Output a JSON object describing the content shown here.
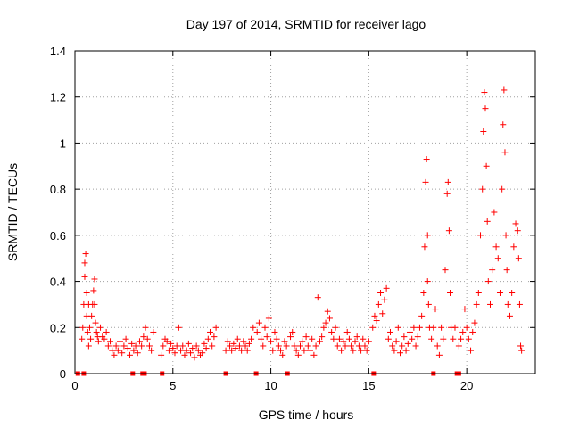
{
  "chart_data": {
    "type": "scatter",
    "title": "Day 197 of 2014, SRMTID for receiver lago",
    "xlabel": "GPS time / hours",
    "ylabel": "SRMTID / TECUs",
    "xlim": [
      0,
      23.5
    ],
    "ylim": [
      0,
      1.4
    ],
    "xticks": [
      0,
      5,
      10,
      15,
      20
    ],
    "yticks": [
      0,
      0.2,
      0.4,
      0.6,
      0.8,
      1,
      1.2,
      1.4
    ],
    "xtick_labels": [
      "0",
      "5",
      "10",
      "15",
      "20"
    ],
    "ytick_labels": [
      "0",
      "0.2",
      "0.4",
      "0.6",
      "0.8",
      "1",
      "1.2",
      "1.4"
    ],
    "grid": true,
    "marker": "+",
    "color": "#ff0000",
    "series": [
      {
        "name": "SRMTID",
        "x": [
          0.35,
          0.4,
          0.45,
          0.5,
          0.5,
          0.55,
          0.6,
          0.6,
          0.65,
          0.7,
          0.7,
          0.75,
          0.8,
          0.85,
          0.9,
          0.95,
          1.0,
          1.0,
          1.05,
          1.1,
          1.15,
          1.2,
          1.3,
          1.4,
          1.5,
          1.6,
          1.7,
          1.8,
          1.9,
          2.0,
          2.1,
          2.2,
          2.3,
          2.4,
          2.5,
          2.6,
          2.7,
          2.8,
          2.9,
          3.0,
          3.1,
          3.2,
          3.3,
          3.4,
          3.5,
          3.6,
          3.7,
          3.8,
          3.9,
          4.0,
          4.4,
          4.5,
          4.6,
          4.7,
          4.8,
          4.9,
          5.0,
          5.1,
          5.2,
          5.3,
          5.4,
          5.5,
          5.6,
          5.7,
          5.8,
          5.9,
          6.0,
          6.1,
          6.2,
          6.3,
          6.4,
          6.5,
          6.6,
          6.7,
          6.8,
          6.9,
          7.0,
          7.1,
          7.2,
          7.7,
          7.8,
          7.9,
          8.0,
          8.1,
          8.2,
          8.3,
          8.4,
          8.5,
          8.6,
          8.7,
          8.8,
          8.9,
          9.0,
          9.1,
          9.3,
          9.4,
          9.5,
          9.6,
          9.7,
          9.8,
          9.9,
          10.0,
          10.1,
          10.2,
          10.3,
          10.4,
          10.5,
          10.6,
          10.7,
          10.8,
          11.0,
          11.1,
          11.2,
          11.3,
          11.4,
          11.5,
          11.6,
          11.7,
          11.8,
          11.9,
          12.0,
          12.1,
          12.2,
          12.3,
          12.4,
          12.5,
          12.6,
          12.7,
          12.8,
          12.9,
          13.0,
          13.1,
          13.2,
          13.3,
          13.4,
          13.5,
          13.6,
          13.7,
          13.8,
          13.9,
          14.0,
          14.1,
          14.2,
          14.3,
          14.4,
          14.5,
          14.6,
          14.7,
          14.8,
          14.9,
          15.0,
          15.2,
          15.3,
          15.4,
          15.5,
          15.6,
          15.7,
          15.8,
          15.9,
          16.0,
          16.1,
          16.2,
          16.3,
          16.4,
          16.5,
          16.6,
          16.7,
          16.8,
          16.9,
          17.0,
          17.1,
          17.2,
          17.3,
          17.4,
          17.5,
          17.6,
          17.7,
          17.8,
          17.85,
          17.9,
          17.95,
          18.0,
          18.0,
          18.05,
          18.1,
          18.2,
          18.3,
          18.4,
          18.5,
          18.6,
          18.7,
          18.8,
          18.9,
          19.0,
          19.05,
          19.1,
          19.15,
          19.2,
          19.3,
          19.4,
          19.6,
          19.7,
          19.8,
          19.9,
          20.0,
          20.1,
          20.2,
          20.3,
          20.4,
          20.5,
          20.6,
          20.7,
          20.8,
          20.85,
          20.9,
          20.95,
          21.0,
          21.05,
          21.1,
          21.2,
          21.3,
          21.4,
          21.5,
          21.6,
          21.7,
          21.8,
          21.85,
          21.9,
          21.95,
          22.0,
          22.05,
          22.1,
          22.2,
          22.3,
          22.4,
          22.5,
          22.6,
          22.65,
          22.7,
          22.75,
          22.8
        ],
        "y": [
          0.15,
          0.2,
          0.3,
          0.42,
          0.48,
          0.52,
          0.35,
          0.25,
          0.18,
          0.12,
          0.3,
          0.2,
          0.15,
          0.25,
          0.3,
          0.36,
          0.41,
          0.3,
          0.22,
          0.18,
          0.16,
          0.14,
          0.2,
          0.16,
          0.15,
          0.18,
          0.12,
          0.14,
          0.1,
          0.08,
          0.12,
          0.1,
          0.14,
          0.09,
          0.12,
          0.15,
          0.11,
          0.08,
          0.13,
          0.1,
          0.12,
          0.09,
          0.14,
          0.12,
          0.16,
          0.2,
          0.15,
          0.12,
          0.1,
          0.18,
          0.08,
          0.12,
          0.15,
          0.14,
          0.1,
          0.13,
          0.11,
          0.09,
          0.12,
          0.2,
          0.1,
          0.12,
          0.08,
          0.1,
          0.13,
          0.09,
          0.11,
          0.07,
          0.12,
          0.1,
          0.08,
          0.09,
          0.13,
          0.11,
          0.15,
          0.18,
          0.12,
          0.16,
          0.2,
          0.1,
          0.14,
          0.12,
          0.1,
          0.13,
          0.11,
          0.15,
          0.12,
          0.1,
          0.14,
          0.12,
          0.1,
          0.13,
          0.15,
          0.2,
          0.18,
          0.22,
          0.15,
          0.12,
          0.2,
          0.16,
          0.24,
          0.14,
          0.1,
          0.18,
          0.15,
          0.12,
          0.1,
          0.08,
          0.14,
          0.12,
          0.16,
          0.18,
          0.12,
          0.1,
          0.08,
          0.12,
          0.14,
          0.1,
          0.16,
          0.12,
          0.1,
          0.15,
          0.08,
          0.12,
          0.33,
          0.14,
          0.16,
          0.2,
          0.22,
          0.27,
          0.24,
          0.18,
          0.15,
          0.2,
          0.12,
          0.15,
          0.1,
          0.14,
          0.12,
          0.18,
          0.15,
          0.12,
          0.1,
          0.14,
          0.16,
          0.12,
          0.1,
          0.15,
          0.12,
          0.1,
          0.14,
          0.2,
          0.25,
          0.23,
          0.3,
          0.35,
          0.26,
          0.32,
          0.37,
          0.15,
          0.18,
          0.12,
          0.1,
          0.14,
          0.2,
          0.09,
          0.12,
          0.16,
          0.1,
          0.13,
          0.18,
          0.15,
          0.2,
          0.12,
          0.16,
          0.2,
          0.25,
          0.35,
          0.55,
          0.83,
          0.93,
          0.6,
          0.4,
          0.3,
          0.2,
          0.15,
          0.2,
          0.28,
          0.12,
          0.08,
          0.2,
          0.15,
          0.45,
          0.78,
          0.83,
          0.62,
          0.35,
          0.2,
          0.15,
          0.2,
          0.12,
          0.15,
          0.18,
          0.28,
          0.2,
          0.15,
          0.1,
          0.18,
          0.22,
          0.3,
          0.35,
          0.6,
          0.8,
          1.05,
          1.22,
          1.15,
          0.9,
          0.66,
          0.4,
          0.3,
          0.45,
          0.7,
          0.55,
          0.5,
          0.35,
          0.8,
          1.08,
          1.23,
          0.96,
          0.6,
          0.45,
          0.3,
          0.25,
          0.35,
          0.55,
          0.65,
          0.62,
          0.5,
          0.3,
          0.12,
          0.1
        ]
      }
    ],
    "bottom_marks_x": [
      0.15,
      0.45,
      2.95,
      3.45,
      3.55,
      4.45,
      7.7,
      9.25,
      10.85,
      15.25,
      18.3,
      19.5,
      19.6
    ]
  }
}
